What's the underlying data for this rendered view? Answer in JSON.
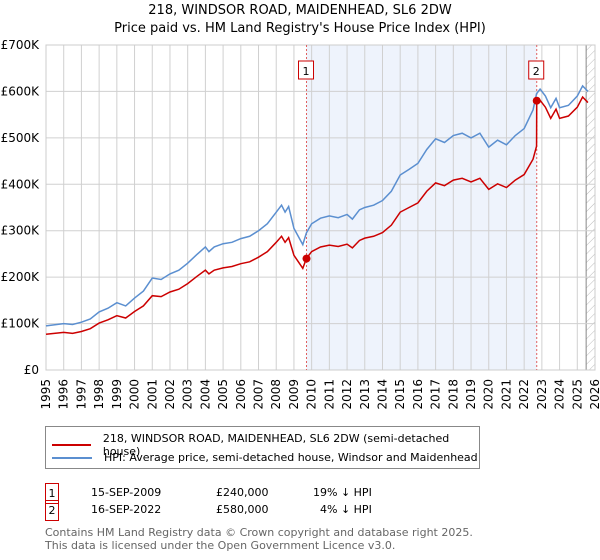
{
  "title": "218, WINDSOR ROAD, MAIDENHEAD, SL6 2DW",
  "subtitle": "Price paid vs. HM Land Registry's House Price Index (HPI)",
  "chart_data": {
    "type": "line",
    "title": "218, WINDSOR ROAD, MAIDENHEAD, SL6 2DW",
    "subtitle": "Price paid vs. HM Land Registry's House Price Index (HPI)",
    "xlim": [
      1995,
      2026
    ],
    "ylim": [
      0,
      700000
    ],
    "x_ticks": [
      "1995",
      "1996",
      "1997",
      "1998",
      "1999",
      "2000",
      "2001",
      "2002",
      "2003",
      "2004",
      "2005",
      "2006",
      "2007",
      "2008",
      "2009",
      "2010",
      "2011",
      "2012",
      "2013",
      "2014",
      "2015",
      "2016",
      "2017",
      "2018",
      "2019",
      "2020",
      "2021",
      "2022",
      "2023",
      "2024",
      "2025",
      "2026"
    ],
    "y_ticks": [
      {
        "v": 0,
        "label": "£0"
      },
      {
        "v": 100000,
        "label": "£100K"
      },
      {
        "v": 200000,
        "label": "£200K"
      },
      {
        "v": 300000,
        "label": "£300K"
      },
      {
        "v": 400000,
        "label": "£400K"
      },
      {
        "v": 500000,
        "label": "£500K"
      },
      {
        "v": 600000,
        "label": "£600K"
      },
      {
        "v": 700000,
        "label": "£700K"
      }
    ],
    "grid": true,
    "shaded_range": [
      2009.71,
      2022.71
    ],
    "forecast_hatch_from": 2025.5,
    "series": [
      {
        "name": "HPI: Average price, semi-detached house, Windsor and Maidenhead",
        "color": "#5b8fd0",
        "x": [
          1995,
          1996,
          1996.5,
          1997,
          1997.5,
          1998,
          1998.5,
          1999,
          1999.5,
          2000,
          2000.5,
          2001,
          2001.5,
          2002,
          2002.5,
          2003,
          2003.5,
          2004,
          2004.2,
          2004.5,
          2005,
          2005.5,
          2006,
          2006.5,
          2007,
          2007.5,
          2008,
          2008.3,
          2008.5,
          2008.7,
          2009,
          2009.5,
          2009.7,
          2010,
          2010.5,
          2011,
          2011.5,
          2012,
          2012.3,
          2012.7,
          2013,
          2013.5,
          2014,
          2014.5,
          2015,
          2015.5,
          2016,
          2016.5,
          2017,
          2017.5,
          2018,
          2018.5,
          2019,
          2019.5,
          2020,
          2020.5,
          2021,
          2021.5,
          2022,
          2022.5,
          2022.7,
          2022.9,
          2023.2,
          2023.5,
          2023.8,
          2024,
          2024.5,
          2025,
          2025.3,
          2025.6
        ],
        "y": [
          95,
          100,
          98,
          103,
          110,
          125,
          133,
          145,
          138,
          155,
          170,
          198,
          195,
          207,
          215,
          230,
          248,
          265,
          255,
          265,
          272,
          275,
          283,
          288,
          300,
          315,
          340,
          355,
          340,
          352,
          305,
          270,
          295,
          315,
          327,
          332,
          328,
          335,
          325,
          345,
          350,
          355,
          365,
          385,
          420,
          432,
          445,
          475,
          498,
          490,
          505,
          510,
          500,
          510,
          480,
          495,
          485,
          505,
          520,
          560,
          595,
          605,
          590,
          565,
          585,
          565,
          570,
          590,
          612,
          600
        ],
        "unit": "thousand GBP"
      },
      {
        "name": "218, WINDSOR ROAD, MAIDENHEAD, SL6 2DW (semi-detached house)",
        "color": "#cc0000",
        "x": [
          1995,
          1996,
          1996.5,
          1997,
          1997.5,
          1998,
          1998.5,
          1999,
          1999.5,
          2000,
          2000.5,
          2001,
          2001.5,
          2002,
          2002.5,
          2003,
          2003.5,
          2004,
          2004.2,
          2004.5,
          2005,
          2005.5,
          2006,
          2006.5,
          2007,
          2007.5,
          2008,
          2008.3,
          2008.5,
          2008.7,
          2009,
          2009.5,
          2009.7,
          2010,
          2010.5,
          2011,
          2011.5,
          2012,
          2012.3,
          2012.7,
          2013,
          2013.5,
          2014,
          2014.5,
          2015,
          2015.5,
          2016,
          2016.5,
          2017,
          2017.5,
          2018,
          2018.5,
          2019,
          2019.5,
          2020,
          2020.5,
          2021,
          2021.5,
          2022,
          2022.5,
          2022.7,
          2022.71,
          2022.9,
          2023.2,
          2023.5,
          2023.8,
          2024,
          2024.5,
          2025,
          2025.3,
          2025.6
        ],
        "y": [
          77,
          81,
          79,
          83,
          89,
          101,
          108,
          117,
          112,
          126,
          138,
          160,
          158,
          168,
          174,
          186,
          201,
          215,
          207,
          215,
          220,
          223,
          229,
          233,
          243,
          255,
          275,
          288,
          275,
          285,
          247,
          219,
          240,
          255,
          265,
          269,
          266,
          271,
          263,
          279,
          284,
          288,
          296,
          312,
          340,
          350,
          360,
          385,
          403,
          397,
          409,
          413,
          405,
          413,
          389,
          401,
          393,
          409,
          421,
          454,
          482,
          580,
          581,
          566,
          542,
          562,
          542,
          547,
          566,
          588,
          576
        ],
        "unit": "thousand GBP"
      }
    ],
    "sales": [
      {
        "label": "1",
        "x": 2009.71,
        "y": 240000
      },
      {
        "label": "2",
        "x": 2022.71,
        "y": 580000
      }
    ]
  },
  "legend": {
    "red": "218, WINDSOR ROAD, MAIDENHEAD, SL6 2DW (semi-detached house)",
    "blue": "HPI: Average price, semi-detached house, Windsor and Maidenhead"
  },
  "transactions": [
    {
      "num": "1",
      "date": "15-SEP-2009",
      "price": "£240,000",
      "hpi": "19% ↓ HPI"
    },
    {
      "num": "2",
      "date": "16-SEP-2022",
      "price": "£580,000",
      "hpi": "4% ↓ HPI"
    }
  ],
  "footer": {
    "line1": "Contains HM Land Registry data © Crown copyright and database right 2025.",
    "line2": "This data is licensed under the Open Government Licence v3.0."
  }
}
